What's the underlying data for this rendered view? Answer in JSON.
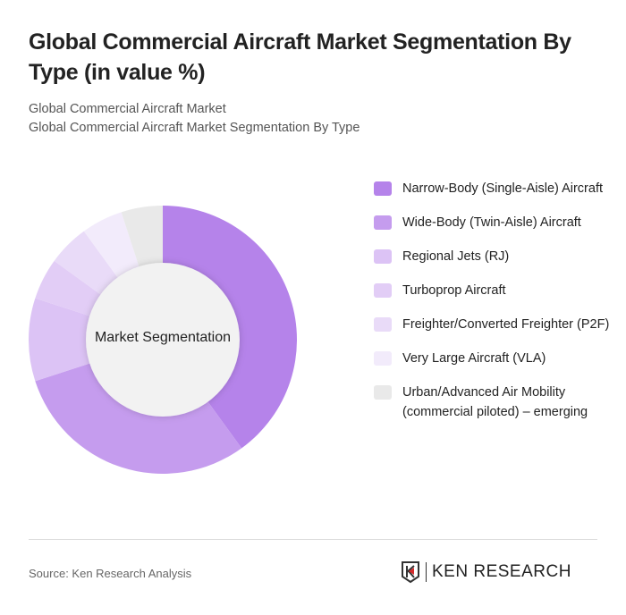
{
  "title": "Global Commercial Aircraft Market Segmentation By Type (in value %)",
  "subtitle1": "Global Commercial Aircraft Market",
  "subtitle2": "Global Commercial Aircraft Market Segmentation By Type",
  "source": "Source: Ken Research Analysis",
  "logo_text": "KEN RESEARCH",
  "chart_data": {
    "type": "pie",
    "variant": "donut",
    "center_label": "Market Segmentation",
    "legend_position": "right",
    "categories": [
      "Narrow-Body (Single-Aisle) Aircraft",
      "Wide-Body (Twin-Aisle) Aircraft",
      "Regional Jets (RJ)",
      "Turboprop Aircraft",
      "Freighter/Converted Freighter (P2F)",
      "Very Large Aircraft (VLA)",
      "Urban/Advanced Air Mobility (commercial piloted) – emerging"
    ],
    "values": [
      40,
      30,
      10,
      5,
      5,
      5,
      5
    ],
    "colors": [
      "#b583ea",
      "#c59cee",
      "#dcc3f5",
      "#e2cdf6",
      "#e9dbf8",
      "#f2ebfb",
      "#e9e9e9"
    ]
  }
}
